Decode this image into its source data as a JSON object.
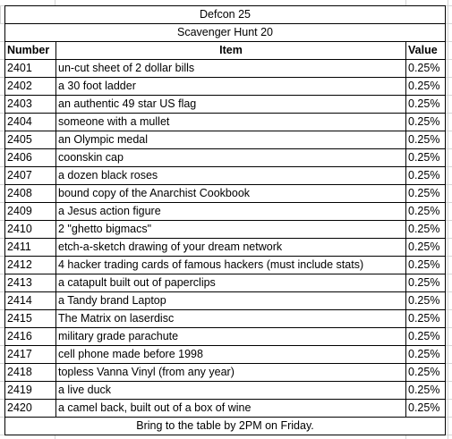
{
  "header": {
    "event": "Defcon 25",
    "title": "Scavenger Hunt 20"
  },
  "columns": {
    "number": "Number",
    "item": "Item",
    "value": "Value"
  },
  "rows": [
    {
      "number": "2401",
      "item": "un-cut sheet of 2 dollar bills",
      "value": "0.25%"
    },
    {
      "number": "2402",
      "item": "a 30 foot ladder",
      "value": "0.25%"
    },
    {
      "number": "2403",
      "item": "an authentic 49 star US flag",
      "value": "0.25%"
    },
    {
      "number": "2404",
      "item": "someone with a mullet",
      "value": "0.25%"
    },
    {
      "number": "2405",
      "item": "an Olympic medal",
      "value": "0.25%"
    },
    {
      "number": "2406",
      "item": "coonskin cap",
      "value": "0.25%"
    },
    {
      "number": "2407",
      "item": "a dozen black roses",
      "value": "0.25%"
    },
    {
      "number": "2408",
      "item": "bound copy of the Anarchist Cookbook",
      "value": "0.25%"
    },
    {
      "number": "2409",
      "item": "a Jesus action figure",
      "value": "0.25%"
    },
    {
      "number": "2410",
      "item": "2 \"ghetto bigmacs\"",
      "value": "0.25%"
    },
    {
      "number": "2411",
      "item": "etch-a-sketch drawing of your dream network",
      "value": "0.25%"
    },
    {
      "number": "2412",
      "item": "4 hacker trading cards of famous hackers (must include stats)",
      "value": "0.25%"
    },
    {
      "number": "2413",
      "item": "a catapult built out of paperclips",
      "value": "0.25%"
    },
    {
      "number": "2414",
      "item": "a Tandy brand Laptop",
      "value": "0.25%"
    },
    {
      "number": "2415",
      "item": "The Matrix on laserdisc",
      "value": "0.25%"
    },
    {
      "number": "2416",
      "item": "military grade parachute",
      "value": "0.25%"
    },
    {
      "number": "2417",
      "item": "cell phone made before 1998",
      "value": "0.25%"
    },
    {
      "number": "2418",
      "item": "topless Vanna Vinyl (from any year)",
      "value": "0.25%"
    },
    {
      "number": "2419",
      "item": "a live duck",
      "value": "0.25%"
    },
    {
      "number": "2420",
      "item": "a camel back, built out of a box of wine",
      "value": "0.25%"
    }
  ],
  "footer": "Bring to the table by 2PM on Friday.",
  "colors": {
    "border": "#000000",
    "gridline": "#d4d4d4",
    "background": "#ffffff"
  }
}
